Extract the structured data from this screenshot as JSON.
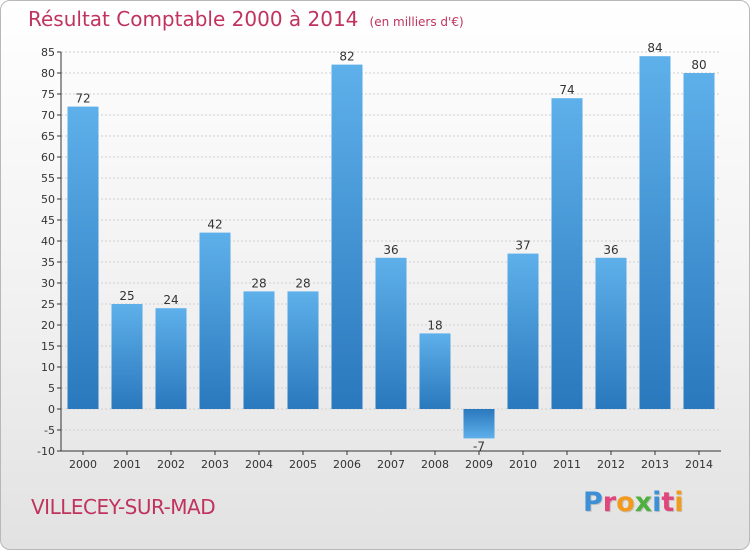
{
  "title": "Résultat Comptable 2000 à 2014",
  "subtitle": "(en milliers d'€)",
  "commune": "VILLECEY-SUR-MAD",
  "logo_text": "Proxiti",
  "colors": {
    "title": "#c0335f",
    "bar_top": "#5eb0ea",
    "bar_bottom": "#2a78bd",
    "axis": "#333333",
    "grid": "#d0d0d0"
  },
  "chart_data": {
    "type": "bar",
    "title": "Résultat Comptable 2000 à 2014",
    "subtitle": "(en milliers d'€)",
    "xlabel": "",
    "ylabel": "",
    "categories": [
      "2000",
      "2001",
      "2002",
      "2003",
      "2004",
      "2005",
      "2006",
      "2007",
      "2008",
      "2009",
      "2010",
      "2011",
      "2012",
      "2013",
      "2014"
    ],
    "values": [
      72,
      25,
      24,
      42,
      28,
      28,
      82,
      36,
      18,
      -7,
      37,
      74,
      36,
      84,
      80
    ],
    "ylim": [
      -10,
      85
    ],
    "yticks": [
      -10,
      -5,
      0,
      5,
      10,
      15,
      20,
      25,
      30,
      35,
      40,
      45,
      50,
      55,
      60,
      65,
      70,
      75,
      80,
      85
    ],
    "grid": true,
    "legend": "none"
  }
}
